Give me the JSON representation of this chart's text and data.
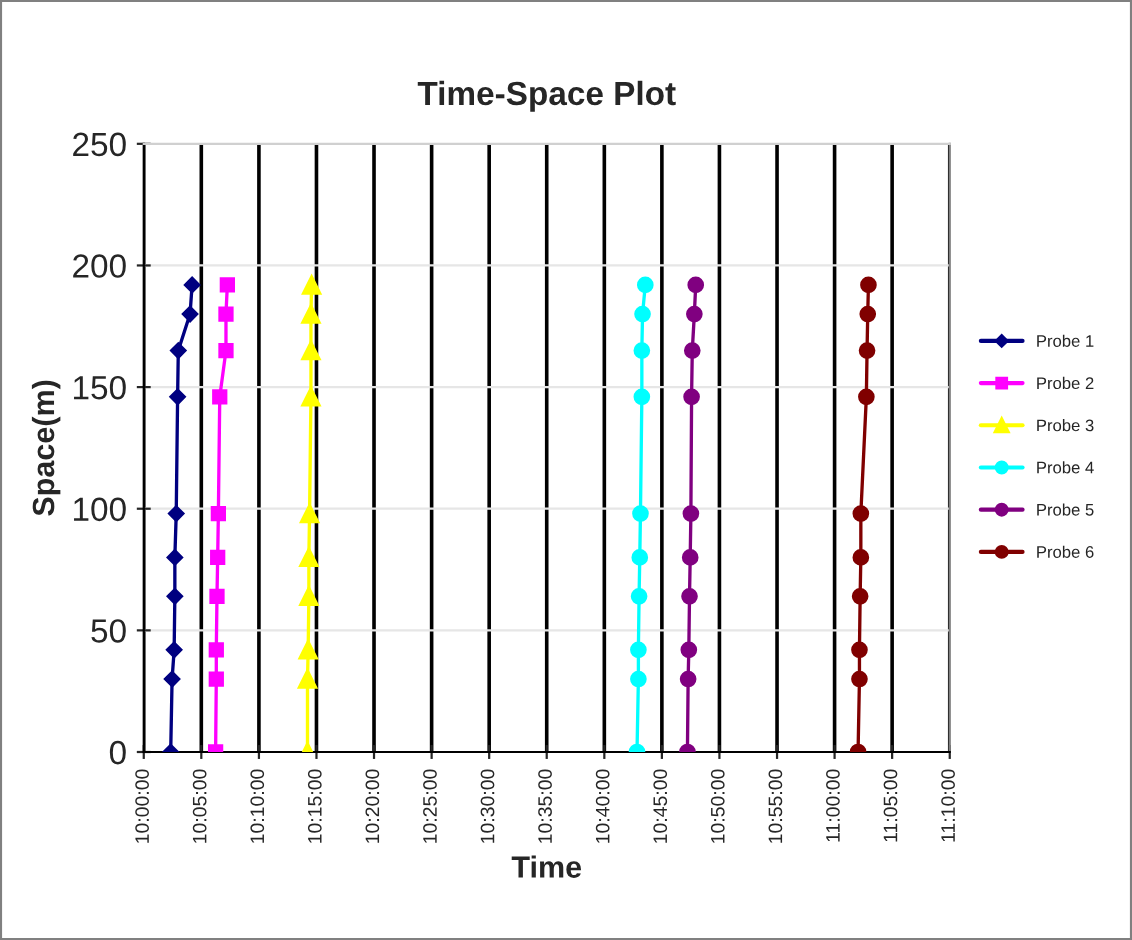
{
  "chart_data": {
    "type": "line",
    "title": "Time-Space Plot",
    "xlabel": "Time",
    "ylabel": "Space(m)",
    "xlim": [
      10.0,
      11.1667
    ],
    "ylim": [
      0,
      250
    ],
    "yticks": [
      0,
      50,
      100,
      150,
      200,
      250
    ],
    "xticks": [
      {
        "value": 10.0,
        "label": "10:00:00"
      },
      {
        "value": 10.0833,
        "label": "10:05:00"
      },
      {
        "value": 10.1667,
        "label": "10:10:00"
      },
      {
        "value": 10.25,
        "label": "10:15:00"
      },
      {
        "value": 10.3333,
        "label": "10:20:00"
      },
      {
        "value": 10.4167,
        "label": "10:25:00"
      },
      {
        "value": 10.5,
        "label": "10:30:00"
      },
      {
        "value": 10.5833,
        "label": "10:35:00"
      },
      {
        "value": 10.6667,
        "label": "10:40:00"
      },
      {
        "value": 10.75,
        "label": "10:45:00"
      },
      {
        "value": 10.8333,
        "label": "10:50:00"
      },
      {
        "value": 10.9167,
        "label": "10:55:00"
      },
      {
        "value": 11.0,
        "label": "11:00:00"
      },
      {
        "value": 11.0833,
        "label": "11:05:00"
      },
      {
        "value": 11.1667,
        "label": "11:10:00"
      }
    ],
    "grid": true,
    "legend": "right",
    "line_style": "solid",
    "series": [
      {
        "name": "Probe 1",
        "color": "#000080",
        "marker": "diamond",
        "x": [
          10.039,
          10.041,
          10.044,
          10.045,
          10.045,
          10.047,
          10.049,
          10.05,
          10.067,
          10.07
        ],
        "values": [
          0,
          30,
          42,
          64,
          80,
          98,
          146,
          165,
          180,
          192
        ]
      },
      {
        "name": "Probe 2",
        "color": "#ff00ff",
        "marker": "square",
        "x": [
          10.104,
          10.105,
          10.105,
          10.106,
          10.107,
          10.108,
          10.11,
          10.119,
          10.119,
          10.121
        ],
        "values": [
          0,
          30,
          42,
          64,
          80,
          98,
          146,
          165,
          180,
          192
        ]
      },
      {
        "name": "Probe 3",
        "color": "#ffff00",
        "marker": "triangle",
        "x": [
          10.237,
          10.237,
          10.238,
          10.239,
          10.239,
          10.24,
          10.242,
          10.242,
          10.242,
          10.243
        ],
        "values": [
          0,
          30,
          42,
          64,
          80,
          98,
          146,
          165,
          180,
          192
        ]
      },
      {
        "name": "Probe 4",
        "color": "#00ffff",
        "marker": "circle",
        "x": [
          10.714,
          10.716,
          10.716,
          10.717,
          10.718,
          10.719,
          10.721,
          10.721,
          10.722,
          10.726
        ],
        "values": [
          0,
          30,
          42,
          64,
          80,
          98,
          146,
          165,
          180,
          192
        ]
      },
      {
        "name": "Probe 5",
        "color": "#800080",
        "marker": "circle",
        "x": [
          10.787,
          10.788,
          10.789,
          10.79,
          10.791,
          10.792,
          10.793,
          10.794,
          10.797,
          10.799
        ],
        "values": [
          0,
          30,
          42,
          64,
          80,
          98,
          146,
          165,
          180,
          192
        ]
      },
      {
        "name": "Probe 6",
        "color": "#800000",
        "marker": "circle",
        "x": [
          11.034,
          11.036,
          11.036,
          11.037,
          11.038,
          11.038,
          11.046,
          11.047,
          11.048,
          11.049
        ],
        "values": [
          0,
          30,
          42,
          64,
          80,
          98,
          146,
          165,
          180,
          192
        ]
      }
    ]
  }
}
